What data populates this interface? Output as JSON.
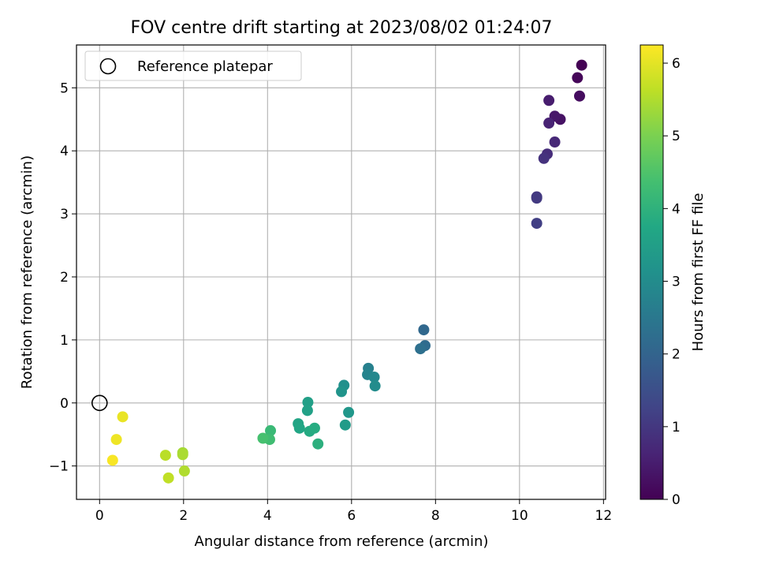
{
  "chart_data": {
    "type": "scatter",
    "title": "FOV centre drift starting at 2023/08/02 01:24:07",
    "xlabel": "Angular distance from reference (arcmin)",
    "ylabel": "Rotation from reference (arcmin)",
    "xlim": [
      -0.55,
      12.05
    ],
    "ylim": [
      -1.53,
      5.68
    ],
    "xticks": [
      0,
      2,
      4,
      6,
      8,
      10,
      12
    ],
    "yticks": [
      -1,
      0,
      1,
      2,
      3,
      4,
      5
    ],
    "grid": true,
    "legend": {
      "placement": "top-left",
      "entries": [
        {
          "label": "Reference platepar",
          "marker": "open-circle"
        }
      ]
    },
    "reference_point": {
      "x": 0,
      "y": 0
    },
    "colorbar": {
      "label": "Hours from first FF file",
      "colormap": "viridis",
      "range": [
        0,
        6.25
      ],
      "ticks": [
        0,
        1,
        2,
        3,
        4,
        5,
        6
      ]
    },
    "points": [
      {
        "x": 11.48,
        "y": 5.36,
        "c": 0.0
      },
      {
        "x": 11.38,
        "y": 5.16,
        "c": 0.1
      },
      {
        "x": 11.43,
        "y": 4.87,
        "c": 0.2
      },
      {
        "x": 10.97,
        "y": 4.5,
        "c": 0.3
      },
      {
        "x": 10.84,
        "y": 4.55,
        "c": 0.4
      },
      {
        "x": 10.7,
        "y": 4.8,
        "c": 0.5
      },
      {
        "x": 10.7,
        "y": 4.44,
        "c": 0.6
      },
      {
        "x": 10.84,
        "y": 4.14,
        "c": 0.7
      },
      {
        "x": 10.66,
        "y": 3.95,
        "c": 0.8
      },
      {
        "x": 10.58,
        "y": 3.88,
        "c": 0.9
      },
      {
        "x": 10.41,
        "y": 3.27,
        "c": 1.0
      },
      {
        "x": 10.41,
        "y": 3.25,
        "c": 1.05
      },
      {
        "x": 10.41,
        "y": 2.85,
        "c": 1.15
      },
      {
        "x": 7.72,
        "y": 1.16,
        "c": 2.1
      },
      {
        "x": 7.75,
        "y": 0.91,
        "c": 2.2
      },
      {
        "x": 7.64,
        "y": 0.86,
        "c": 2.3
      },
      {
        "x": 6.4,
        "y": 0.55,
        "c": 2.7
      },
      {
        "x": 6.38,
        "y": 0.45,
        "c": 2.8
      },
      {
        "x": 6.54,
        "y": 0.41,
        "c": 2.9
      },
      {
        "x": 6.56,
        "y": 0.27,
        "c": 3.0
      },
      {
        "x": 5.82,
        "y": 0.28,
        "c": 3.1
      },
      {
        "x": 5.76,
        "y": 0.18,
        "c": 3.2
      },
      {
        "x": 5.93,
        "y": -0.15,
        "c": 3.3
      },
      {
        "x": 5.85,
        "y": -0.35,
        "c": 3.4
      },
      {
        "x": 4.96,
        "y": 0.01,
        "c": 3.5
      },
      {
        "x": 4.95,
        "y": -0.12,
        "c": 3.55
      },
      {
        "x": 4.73,
        "y": -0.33,
        "c": 3.65
      },
      {
        "x": 4.76,
        "y": -0.4,
        "c": 3.7
      },
      {
        "x": 5.0,
        "y": -0.45,
        "c": 3.8
      },
      {
        "x": 5.12,
        "y": -0.4,
        "c": 3.85
      },
      {
        "x": 5.2,
        "y": -0.65,
        "c": 3.95
      },
      {
        "x": 4.07,
        "y": -0.44,
        "c": 4.2
      },
      {
        "x": 4.05,
        "y": -0.58,
        "c": 4.3
      },
      {
        "x": 3.89,
        "y": -0.56,
        "c": 4.4
      },
      {
        "x": 1.98,
        "y": -0.79,
        "c": 5.4
      },
      {
        "x": 1.98,
        "y": -0.82,
        "c": 5.45
      },
      {
        "x": 2.02,
        "y": -1.08,
        "c": 5.5
      },
      {
        "x": 1.57,
        "y": -0.83,
        "c": 5.6
      },
      {
        "x": 1.64,
        "y": -1.19,
        "c": 5.65
      },
      {
        "x": 0.55,
        "y": -0.22,
        "c": 6.05
      },
      {
        "x": 0.4,
        "y": -0.58,
        "c": 6.1
      },
      {
        "x": 0.31,
        "y": -0.91,
        "c": 6.2
      }
    ]
  }
}
